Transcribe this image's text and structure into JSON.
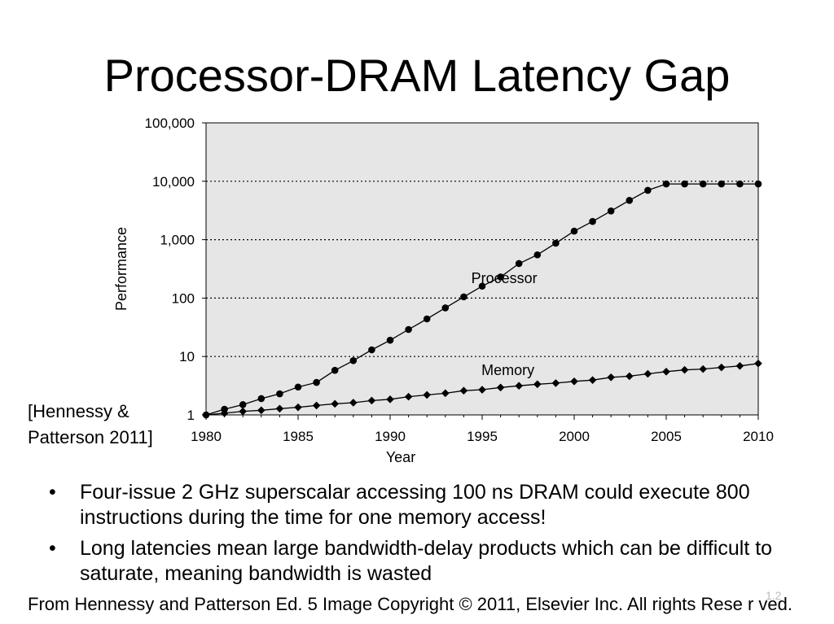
{
  "slide": {
    "title": "Processor-DRAM Latency Gap",
    "citation_line1": "[Hennessy &",
    "citation_line2": "Patterson 2011]",
    "bullets": [
      "Four-issue 2 GHz superscalar accessing 100 ns DRAM could execute 800 instructions during the time for one memory access!",
      "Long latencies mean large bandwidth-delay products which can be difficult to saturate, meaning bandwidth is wasted"
    ],
    "bullet_symbol": "•",
    "footer": "From Hennessy and Patterson Ed. 5 Image Copyright © 2011, Elsevier Inc. All rights Rese r ved.",
    "slide_number": "1.2"
  },
  "chart_data": {
    "type": "line",
    "xlabel": "Year",
    "ylabel": "Performance",
    "xlim": [
      1980,
      2010
    ],
    "ylim": [
      1,
      100000
    ],
    "yscale": "log",
    "xticks": [
      1980,
      1985,
      1990,
      1995,
      2000,
      2005,
      2010
    ],
    "xtick_labels": [
      "1980",
      "1985",
      "1990",
      "1995",
      "2000",
      "2005",
      "2010"
    ],
    "yticks": [
      1,
      10,
      100,
      1000,
      10000,
      100000
    ],
    "ytick_labels": [
      "1",
      "10",
      "100",
      "1,000",
      "10,000",
      "100,000"
    ],
    "grid": "horizontal dotted",
    "plot_background": "#e6e6e6",
    "x": [
      1980,
      1981,
      1982,
      1983,
      1984,
      1985,
      1986,
      1987,
      1988,
      1989,
      1990,
      1991,
      1992,
      1993,
      1994,
      1995,
      1996,
      1997,
      1998,
      1999,
      2000,
      2001,
      2002,
      2003,
      2004,
      2005,
      2006,
      2007,
      2008,
      2009,
      2010
    ],
    "series": [
      {
        "name": "Processor",
        "marker": "circle",
        "values": [
          1,
          1.25,
          1.5,
          1.9,
          2.3,
          3,
          3.6,
          5.8,
          8.5,
          13,
          19,
          29,
          44,
          68,
          105,
          160,
          230,
          390,
          550,
          870,
          1400,
          2050,
          3100,
          4700,
          7000,
          9000,
          9000,
          9000,
          9000,
          9000,
          9000
        ]
      },
      {
        "name": "Memory",
        "marker": "diamond",
        "values": [
          1,
          1.07,
          1.15,
          1.2,
          1.28,
          1.35,
          1.45,
          1.55,
          1.62,
          1.76,
          1.85,
          2.05,
          2.2,
          2.35,
          2.6,
          2.7,
          2.95,
          3.15,
          3.35,
          3.5,
          3.75,
          3.95,
          4.4,
          4.6,
          5.05,
          5.5,
          5.9,
          6.1,
          6.5,
          6.9,
          7.6
        ]
      }
    ],
    "annotations": [
      {
        "text": "Processor",
        "x": 1996.2,
        "y": 180
      },
      {
        "text": "Memory",
        "x": 1996.4,
        "y": 4.8
      }
    ]
  }
}
